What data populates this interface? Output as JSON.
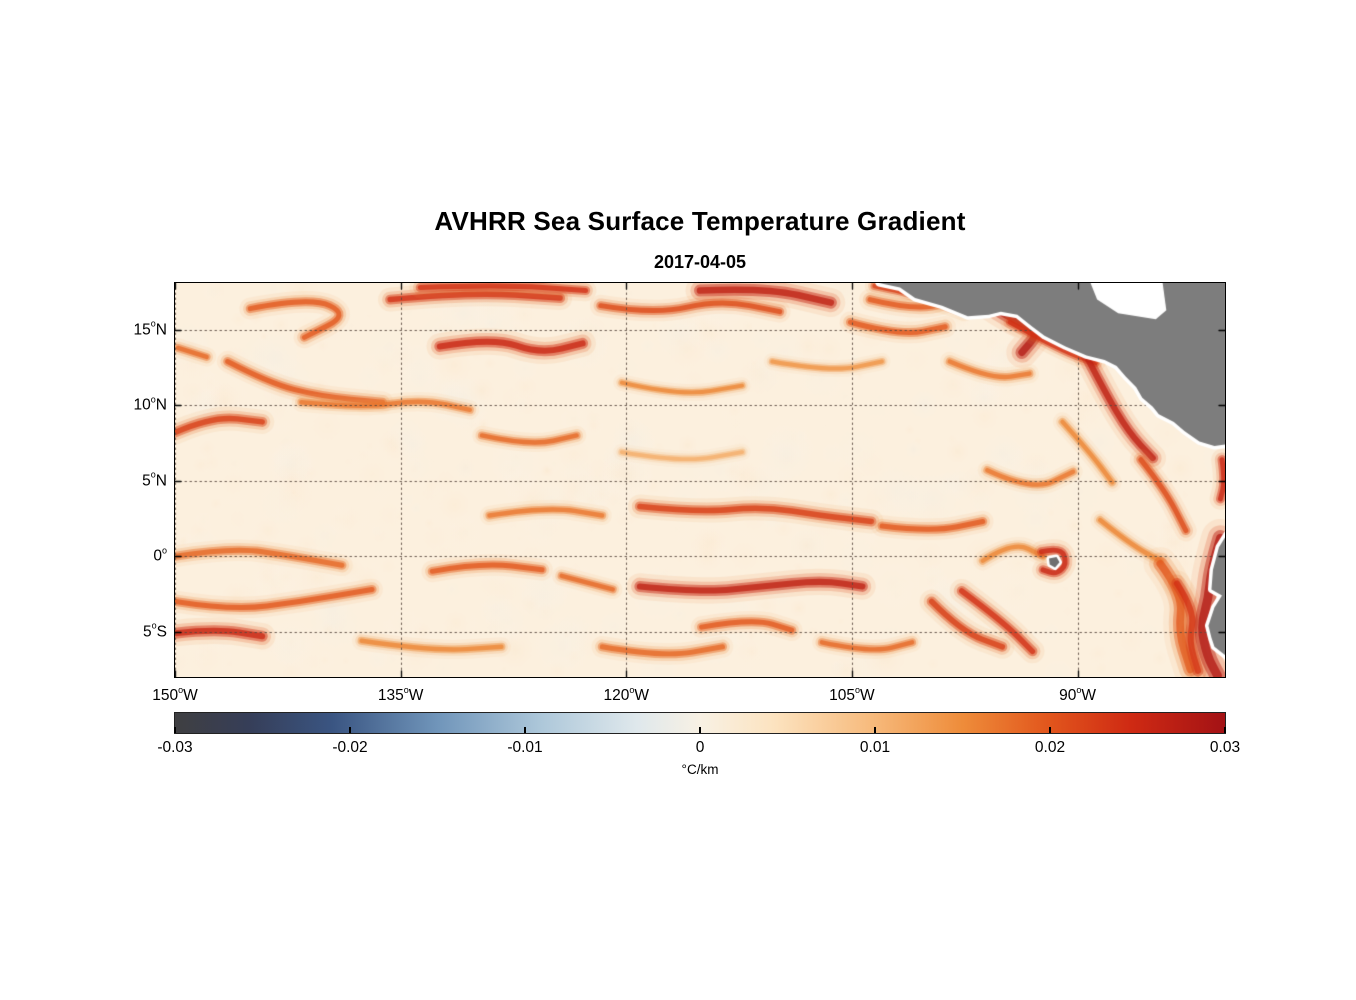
{
  "chart_data": {
    "type": "heatmap",
    "title": "AVHRR Sea Surface Temperature Gradient",
    "date": "2017-04-05",
    "degree_symbol": "o",
    "grid": true,
    "extent": {
      "lon": [
        -150,
        -80.2
      ],
      "lat": [
        -8.0,
        18.1
      ]
    },
    "lat_ticks": [
      {
        "text": "15",
        "hem": "N",
        "value": 15
      },
      {
        "text": "10",
        "hem": "N",
        "value": 10
      },
      {
        "text": "5",
        "hem": "N",
        "value": 5
      },
      {
        "text": "0",
        "hem": "",
        "value": 0
      },
      {
        "text": "5",
        "hem": "S",
        "value": -5
      }
    ],
    "lon_ticks": [
      {
        "text": "150",
        "hem": "W",
        "value": -150
      },
      {
        "text": "135",
        "hem": "W",
        "value": -135
      },
      {
        "text": "120",
        "hem": "W",
        "value": -120
      },
      {
        "text": "105",
        "hem": "W",
        "value": -105
      },
      {
        "text": "90",
        "hem": "W",
        "value": -90
      }
    ],
    "colorbar": {
      "range": [
        -0.03,
        0.03
      ],
      "tick_labels": [
        "-0.03",
        "-0.02",
        "-0.01",
        "0",
        "0.01",
        "0.02",
        "0.03"
      ],
      "tick_values": [
        -0.03,
        -0.02,
        -0.01,
        0,
        0.01,
        0.02,
        0.03
      ],
      "label": "°C/km",
      "stops": [
        {
          "p": 0.0,
          "c": "#3f3f41"
        },
        {
          "p": 0.07,
          "c": "#363e58"
        },
        {
          "p": 0.15,
          "c": "#3a5582"
        },
        {
          "p": 0.25,
          "c": "#7095ba"
        },
        {
          "p": 0.35,
          "c": "#aec8da"
        },
        {
          "p": 0.44,
          "c": "#dfe8ec"
        },
        {
          "p": 0.5,
          "c": "#f8f1e4"
        },
        {
          "p": 0.57,
          "c": "#fce3c0"
        },
        {
          "p": 0.66,
          "c": "#f7bc7f"
        },
        {
          "p": 0.75,
          "c": "#ee8c3a"
        },
        {
          "p": 0.83,
          "c": "#e2571d"
        },
        {
          "p": 0.91,
          "c": "#cf2a13"
        },
        {
          "p": 1.0,
          "c": "#a31215"
        }
      ]
    },
    "land_color": "#7d7d7d",
    "island_color": "#6f6f6f",
    "coast_buffer_color": "#ffffff",
    "ocean_base_color": "#fcf0de",
    "grid_color": "rgba(85,70,60,0.9)",
    "land": {
      "central_america": [
        [
          -103.6,
          19.0
        ],
        [
          -103.2,
          18.1
        ],
        [
          -101.8,
          17.8
        ],
        [
          -100.8,
          17.1
        ],
        [
          -99.0,
          16.6
        ],
        [
          -97.3,
          15.9
        ],
        [
          -95.9,
          16.0
        ],
        [
          -95.1,
          16.2
        ],
        [
          -94.0,
          16.0
        ],
        [
          -93.0,
          15.2
        ],
        [
          -92.2,
          14.6
        ],
        [
          -90.8,
          13.9
        ],
        [
          -89.4,
          13.3
        ],
        [
          -88.2,
          13.0
        ],
        [
          -87.4,
          12.6
        ],
        [
          -86.8,
          11.9
        ],
        [
          -86.1,
          11.2
        ],
        [
          -85.7,
          10.5
        ],
        [
          -85.0,
          9.9
        ],
        [
          -84.6,
          9.4
        ],
        [
          -83.6,
          8.9
        ],
        [
          -82.9,
          8.3
        ],
        [
          -81.9,
          7.6
        ],
        [
          -80.9,
          7.3
        ],
        [
          -80.2,
          7.4
        ],
        [
          -79.0,
          7.8
        ],
        [
          -77.0,
          7.0
        ],
        [
          -77.0,
          19.5
        ]
      ],
      "caribbean_mask": [
        [
          -89.3,
          18.5
        ],
        [
          -88.7,
          17.0
        ],
        [
          -87.3,
          16.1
        ],
        [
          -84.8,
          15.7
        ],
        [
          -84.1,
          16.3
        ],
        [
          -84.4,
          18.5
        ]
      ],
      "south_america": [
        [
          -79.6,
          2.2
        ],
        [
          -80.1,
          1.4
        ],
        [
          -80.6,
          0.6
        ],
        [
          -81.0,
          -0.9
        ],
        [
          -81.1,
          -2.2
        ],
        [
          -80.4,
          -2.6
        ],
        [
          -80.9,
          -3.4
        ],
        [
          -81.3,
          -4.6
        ],
        [
          -81.1,
          -5.4
        ],
        [
          -80.9,
          -6.0
        ],
        [
          -80.0,
          -6.7
        ],
        [
          -79.4,
          -7.4
        ],
        [
          -78.9,
          -8.3
        ],
        [
          -76.0,
          -8.5
        ],
        [
          -76.0,
          2.8
        ]
      ],
      "galapagos": [
        [
          -91.9,
          -0.15
        ],
        [
          -91.4,
          -0.05
        ],
        [
          -91.2,
          -0.4
        ],
        [
          -91.5,
          -0.75
        ],
        [
          -91.85,
          -0.55
        ]
      ]
    },
    "filaments": [
      {
        "pts": [
          [
            -135.7,
            17.0
          ],
          [
            -130.4,
            17.5
          ],
          [
            -124.4,
            17.1
          ]
        ],
        "i": 0.85,
        "w": 10
      },
      {
        "pts": [
          [
            -133.7,
            17.8
          ],
          [
            -128.4,
            18.0
          ],
          [
            -122.7,
            17.6
          ]
        ],
        "i": 0.85,
        "w": 9
      },
      {
        "pts": [
          [
            -145.0,
            16.4
          ],
          [
            -141.0,
            17.2
          ],
          [
            -138.4,
            16.0
          ],
          [
            -141.4,
            14.5
          ]
        ],
        "i": 0.7,
        "w": 9
      },
      {
        "pts": [
          [
            -121.7,
            16.6
          ],
          [
            -118.1,
            16.0
          ],
          [
            -113.8,
            17.0
          ],
          [
            -109.8,
            16.2
          ]
        ],
        "i": 0.75,
        "w": 9
      },
      {
        "pts": [
          [
            -115.1,
            17.6
          ],
          [
            -110.8,
            17.8
          ],
          [
            -106.4,
            16.8
          ]
        ],
        "i": 0.95,
        "w": 12
      },
      {
        "pts": [
          [
            -105.1,
            15.5
          ],
          [
            -101.8,
            14.6
          ],
          [
            -98.8,
            15.2
          ]
        ],
        "i": 0.7,
        "w": 9
      },
      {
        "pts": [
          [
            -103.8,
            17.0
          ],
          [
            -100.5,
            16.2
          ],
          [
            -97.7,
            17.2
          ]
        ],
        "i": 0.7,
        "w": 9
      },
      {
        "pts": [
          [
            -103.5,
            17.9
          ],
          [
            -101.5,
            17.5
          ],
          [
            -99.5,
            16.9
          ],
          [
            -97.5,
            16.2
          ]
        ],
        "i": 0.8,
        "w": 8
      },
      {
        "pts": [
          [
            -96.5,
            17.1
          ],
          [
            -94.6,
            15.8
          ],
          [
            -92.5,
            14.9
          ],
          [
            -93.7,
            13.5
          ]
        ],
        "i": 1.0,
        "w": 13
      },
      {
        "pts": [
          [
            -94.5,
            15.5
          ],
          [
            -92.5,
            14.4
          ],
          [
            -90.5,
            13.4
          ],
          [
            -88.8,
            12.8
          ]
        ],
        "i": 0.85,
        "w": 8
      },
      {
        "pts": [
          [
            -98.5,
            12.9
          ],
          [
            -95.7,
            11.7
          ],
          [
            -93.2,
            12.1
          ]
        ],
        "i": 0.6,
        "w": 8
      },
      {
        "pts": [
          [
            -89.7,
            13.8
          ],
          [
            -88.2,
            10.9
          ],
          [
            -86.6,
            8.2
          ],
          [
            -85.0,
            6.5
          ]
        ],
        "i": 0.95,
        "w": 11
      },
      {
        "pts": [
          [
            -91.0,
            8.9
          ],
          [
            -89.2,
            6.9
          ],
          [
            -87.7,
            4.9
          ]
        ],
        "i": 0.55,
        "w": 8
      },
      {
        "pts": [
          [
            -132.4,
            13.9
          ],
          [
            -128.9,
            14.5
          ],
          [
            -125.7,
            13.4
          ],
          [
            -122.9,
            14.1
          ]
        ],
        "i": 0.9,
        "w": 11
      },
      {
        "pts": [
          [
            -146.5,
            12.9
          ],
          [
            -143.8,
            11.5
          ],
          [
            -140.4,
            10.6
          ],
          [
            -136.2,
            10.2
          ]
        ],
        "i": 0.7,
        "w": 9
      },
      {
        "pts": [
          [
            -149.8,
            13.8
          ],
          [
            -147.9,
            13.2
          ]
        ],
        "i": 0.65,
        "w": 8
      },
      {
        "pts": [
          [
            -150.0,
            8.2
          ],
          [
            -147.5,
            9.3
          ],
          [
            -144.2,
            8.9
          ]
        ],
        "i": 0.8,
        "w": 10
      },
      {
        "pts": [
          [
            -141.6,
            10.2
          ],
          [
            -137.6,
            9.8
          ],
          [
            -133.6,
            10.4
          ],
          [
            -130.4,
            9.7
          ]
        ],
        "i": 0.6,
        "w": 8
      },
      {
        "pts": [
          [
            -129.6,
            8.0
          ],
          [
            -126.4,
            7.3
          ],
          [
            -123.3,
            8.0
          ]
        ],
        "i": 0.65,
        "w": 8
      },
      {
        "pts": [
          [
            -120.3,
            11.5
          ],
          [
            -116.4,
            10.6
          ],
          [
            -112.3,
            11.3
          ]
        ],
        "i": 0.55,
        "w": 7
      },
      {
        "pts": [
          [
            -110.3,
            12.9
          ],
          [
            -106.4,
            12.2
          ],
          [
            -103.0,
            12.9
          ]
        ],
        "i": 0.5,
        "w": 7
      },
      {
        "pts": [
          [
            -120.3,
            6.9
          ],
          [
            -116.3,
            6.2
          ],
          [
            -112.3,
            6.9
          ]
        ],
        "i": 0.4,
        "w": 7
      },
      {
        "pts": [
          [
            -96.0,
            5.7
          ],
          [
            -93.0,
            4.3
          ],
          [
            -90.3,
            5.6
          ]
        ],
        "i": 0.6,
        "w": 8
      },
      {
        "pts": [
          [
            -119.1,
            3.3
          ],
          [
            -115.1,
            2.9
          ],
          [
            -111.0,
            3.3
          ],
          [
            -107.0,
            2.7
          ],
          [
            -103.7,
            2.3
          ]
        ],
        "i": 0.8,
        "w": 10
      },
      {
        "pts": [
          [
            -103.0,
            2.0
          ],
          [
            -99.7,
            1.6
          ],
          [
            -96.3,
            2.3
          ]
        ],
        "i": 0.7,
        "w": 9
      },
      {
        "pts": [
          [
            -129.1,
            2.7
          ],
          [
            -125.3,
            3.3
          ],
          [
            -121.6,
            2.7
          ]
        ],
        "i": 0.6,
        "w": 8
      },
      {
        "pts": [
          [
            -150.0,
            0.0
          ],
          [
            -146.2,
            0.6
          ],
          [
            -142.2,
            0.0
          ],
          [
            -138.9,
            -0.6
          ]
        ],
        "i": 0.65,
        "w": 9
      },
      {
        "pts": [
          [
            -132.9,
            -1.0
          ],
          [
            -129.6,
            -0.4
          ],
          [
            -125.6,
            -0.9
          ]
        ],
        "i": 0.7,
        "w": 9
      },
      {
        "pts": [
          [
            -124.3,
            -1.3
          ],
          [
            -120.9,
            -2.2
          ]
        ],
        "i": 0.65,
        "w": 8
      },
      {
        "pts": [
          [
            -119.1,
            -2.0
          ],
          [
            -115.0,
            -2.4
          ],
          [
            -111.0,
            -2.0
          ],
          [
            -107.0,
            -1.6
          ],
          [
            -104.3,
            -2.0
          ]
        ],
        "i": 0.95,
        "w": 11
      },
      {
        "pts": [
          [
            -150.0,
            -3.0
          ],
          [
            -146.2,
            -3.6
          ],
          [
            -141.6,
            -3.0
          ],
          [
            -136.9,
            -2.2
          ]
        ],
        "i": 0.7,
        "w": 9
      },
      {
        "pts": [
          [
            -150.0,
            -5.1
          ],
          [
            -147.3,
            -4.8
          ],
          [
            -144.2,
            -5.3
          ]
        ],
        "i": 0.9,
        "w": 11
      },
      {
        "pts": [
          [
            -137.6,
            -5.6
          ],
          [
            -132.9,
            -6.3
          ],
          [
            -128.3,
            -6.0
          ]
        ],
        "i": 0.55,
        "w": 8
      },
      {
        "pts": [
          [
            -121.6,
            -6.0
          ],
          [
            -117.6,
            -6.7
          ],
          [
            -113.6,
            -6.0
          ]
        ],
        "i": 0.65,
        "w": 9
      },
      {
        "pts": [
          [
            -115.0,
            -4.7
          ],
          [
            -111.6,
            -4.1
          ],
          [
            -109.0,
            -4.9
          ]
        ],
        "i": 0.7,
        "w": 9
      },
      {
        "pts": [
          [
            -107.0,
            -5.7
          ],
          [
            -103.7,
            -6.4
          ],
          [
            -101.0,
            -5.7
          ]
        ],
        "i": 0.65,
        "w": 8
      },
      {
        "pts": [
          [
            -99.7,
            -3.0
          ],
          [
            -97.7,
            -5.0
          ],
          [
            -95.0,
            -6.0
          ]
        ],
        "i": 0.8,
        "w": 10
      },
      {
        "pts": [
          [
            -97.7,
            -2.3
          ],
          [
            -95.0,
            -4.3
          ],
          [
            -93.0,
            -6.3
          ]
        ],
        "i": 0.85,
        "w": 10
      },
      {
        "pts": [
          [
            -96.3,
            -0.3
          ],
          [
            -94.3,
            1.0
          ],
          [
            -92.3,
            0.0
          ]
        ],
        "i": 0.55,
        "w": 8
      },
      {
        "pts": [
          [
            -92.4,
            0.3
          ],
          [
            -91.1,
            0.6
          ],
          [
            -90.7,
            -0.5
          ],
          [
            -91.4,
            -1.2
          ],
          [
            -92.3,
            -0.9
          ]
        ],
        "i": 0.9,
        "w": 9
      },
      {
        "pts": [
          [
            -88.5,
            2.4
          ],
          [
            -86.5,
            0.8
          ],
          [
            -84.5,
            -0.3
          ]
        ],
        "i": 0.55,
        "w": 8
      },
      {
        "pts": [
          [
            -85.8,
            6.4
          ],
          [
            -84.2,
            4.4
          ],
          [
            -82.8,
            1.7
          ]
        ],
        "i": 0.75,
        "w": 9
      },
      {
        "pts": [
          [
            -80.4,
            6.4
          ],
          [
            -80.2,
            5.0
          ],
          [
            -80.5,
            3.8
          ]
        ],
        "i": 0.9,
        "w": 9
      },
      {
        "pts": [
          [
            -84.5,
            -0.5
          ],
          [
            -83.0,
            -2.5
          ],
          [
            -83.3,
            -5.0
          ],
          [
            -82.5,
            -7.5
          ]
        ],
        "i": 0.7,
        "w": 14
      },
      {
        "pts": [
          [
            -83.4,
            -1.8
          ],
          [
            -82.2,
            -3.6
          ],
          [
            -82.6,
            -5.6
          ],
          [
            -82.0,
            -7.6
          ]
        ],
        "i": 0.85,
        "w": 11
      },
      {
        "pts": [
          [
            -80.5,
            1.2
          ],
          [
            -81.1,
            -0.8
          ],
          [
            -81.3,
            -2.8
          ],
          [
            -81.8,
            -4.6
          ],
          [
            -81.4,
            -6.6
          ],
          [
            -80.7,
            -7.9
          ]
        ],
        "i": 1.0,
        "w": 16
      }
    ]
  }
}
